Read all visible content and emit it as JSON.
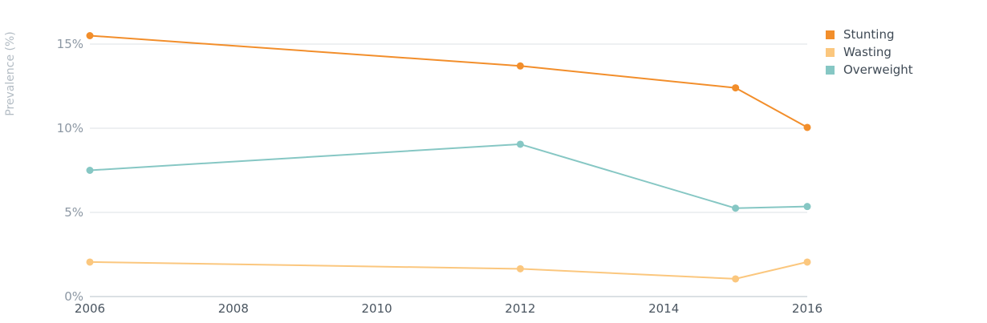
{
  "chart_data": {
    "type": "line",
    "title": "",
    "xlabel": "",
    "ylabel": "Prevalence (%)",
    "x_ticks": [
      "2006",
      "2008",
      "2010",
      "2012",
      "2014",
      "2016"
    ],
    "y_ticks": [
      "0%",
      "5%",
      "10%",
      "15%"
    ],
    "xlim": [
      2006,
      2016
    ],
    "ylim": [
      0,
      15
    ],
    "grid": true,
    "legend_position": "top-right",
    "series": [
      {
        "name": "Stunting",
        "color": "#f28e2b",
        "x": [
          2006,
          2012,
          2015,
          2016
        ],
        "values": [
          15.5,
          13.7,
          12.4,
          10.05
        ]
      },
      {
        "name": "Wasting",
        "color": "#fbc77e",
        "x": [
          2006,
          2012,
          2015,
          2016
        ],
        "values": [
          2.05,
          1.65,
          1.05,
          2.05
        ]
      },
      {
        "name": "Overweight",
        "color": "#86c7c4",
        "x": [
          2006,
          2012,
          2015,
          2016
        ],
        "values": [
          7.5,
          9.05,
          5.25,
          5.35
        ]
      }
    ]
  }
}
